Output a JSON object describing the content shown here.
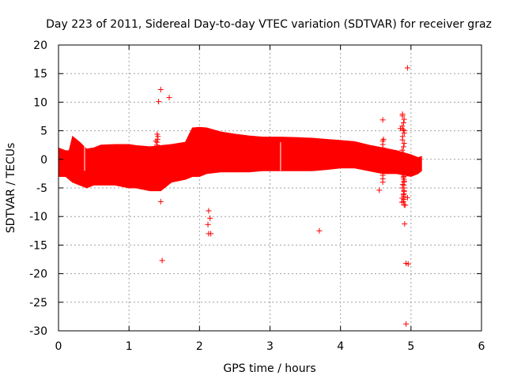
{
  "chart_data": {
    "type": "scatter",
    "title": "Day 223 of 2011, Sidereal Day-to-day VTEC variation (SDTVAR) for receiver graz",
    "xlabel": "GPS time / hours",
    "ylabel": "SDTVAR / TECUs",
    "xlim": [
      0,
      6
    ],
    "ylim": [
      -30,
      20
    ],
    "xticks": [
      0,
      1,
      2,
      3,
      4,
      5,
      6
    ],
    "yticks": [
      20,
      15,
      10,
      5,
      0,
      -5,
      -10,
      -15,
      -20,
      -25,
      -30
    ],
    "grid": true,
    "marker": "+",
    "color": "#ff0000",
    "band": {
      "name": "dense SDTVAR data band",
      "x": [
        0.0,
        0.1,
        0.15,
        0.2,
        0.3,
        0.4,
        0.5,
        0.6,
        0.8,
        1.0,
        1.1,
        1.3,
        1.45,
        1.6,
        1.8,
        1.9,
        2.0,
        2.1,
        2.3,
        2.5,
        2.7,
        2.9,
        3.15,
        3.4,
        3.6,
        3.8,
        4.0,
        4.2,
        4.4,
        4.6,
        4.8,
        5.0,
        5.1,
        5.15
      ],
      "upper": [
        2.0,
        1.5,
        1.5,
        4.0,
        3.0,
        1.8,
        2.0,
        2.5,
        2.6,
        2.6,
        2.4,
        2.2,
        2.4,
        2.6,
        3.0,
        5.5,
        5.6,
        5.5,
        4.8,
        4.4,
        4.1,
        3.9,
        3.9,
        3.8,
        3.7,
        3.5,
        3.3,
        3.1,
        2.5,
        2.0,
        1.5,
        0.8,
        0.3,
        0.5
      ],
      "lower": [
        -3.0,
        -3.0,
        -3.5,
        -4.0,
        -4.5,
        -5.0,
        -4.5,
        -4.5,
        -4.5,
        -5.0,
        -5.0,
        -5.5,
        -5.5,
        -4.0,
        -3.5,
        -3.0,
        -3.0,
        -2.5,
        -2.2,
        -2.2,
        -2.2,
        -2.0,
        -2.0,
        -2.0,
        -2.0,
        -1.8,
        -1.5,
        -1.5,
        -2.0,
        -2.5,
        -2.5,
        -3.0,
        -2.5,
        -2.0
      ]
    },
    "outliers": {
      "x": [
        1.45,
        1.42,
        1.57,
        1.4,
        1.38,
        1.45,
        1.47,
        2.13,
        2.12,
        2.15,
        2.13,
        2.16,
        3.7,
        4.6,
        4.55,
        4.88,
        4.85,
        4.9,
        4.92,
        4.91,
        4.95,
        4.93,
        4.96
      ],
      "y": [
        12.2,
        10.1,
        10.8,
        4.4,
        3.2,
        -7.4,
        -17.7,
        -9.0,
        -11.4,
        -10.3,
        -13.0,
        -13.0,
        -12.5,
        6.9,
        -5.4,
        7.9,
        5.4,
        5.0,
        -8.0,
        -11.3,
        16.0,
        -18.2,
        -18.3
      ]
    },
    "extra_outliers": {
      "x": [
        4.93,
        4.87,
        4.95,
        4.61
      ],
      "y": [
        -28.8,
        -7.5,
        -6.7,
        3.5
      ]
    }
  }
}
